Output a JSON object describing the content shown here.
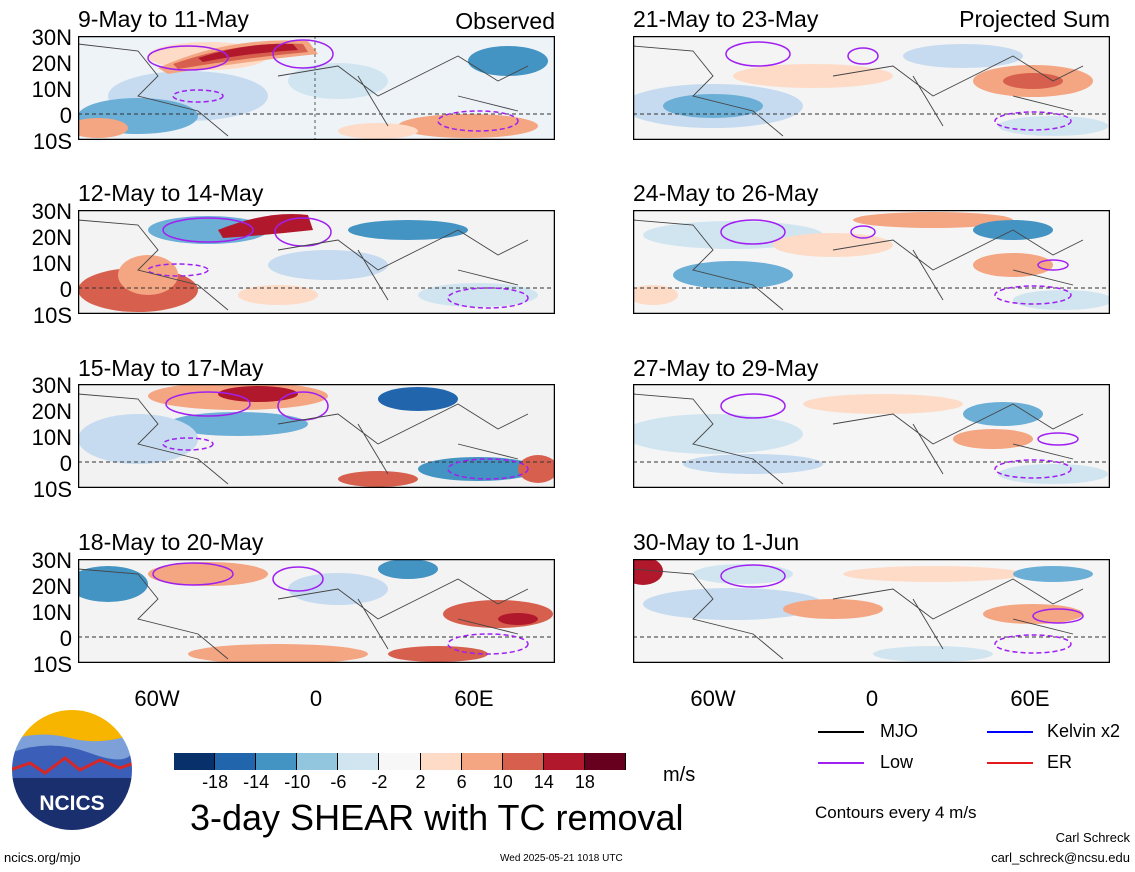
{
  "panels": [
    {
      "id": "p1",
      "title": "9-May to 11-May",
      "label": "Observed"
    },
    {
      "id": "p2",
      "title": "12-May to 14-May",
      "label": ""
    },
    {
      "id": "p3",
      "title": "15-May to 17-May",
      "label": ""
    },
    {
      "id": "p4",
      "title": "18-May to 20-May",
      "label": ""
    },
    {
      "id": "p5",
      "title": "21-May to 23-May",
      "label": "Projected Sum"
    },
    {
      "id": "p6",
      "title": "24-May to 26-May",
      "label": ""
    },
    {
      "id": "p7",
      "title": "27-May to 29-May",
      "label": ""
    },
    {
      "id": "p8",
      "title": "30-May to 1-Jun",
      "label": ""
    }
  ],
  "lat_labels": [
    "30N",
    "20N",
    "10N",
    "0",
    "10S"
  ],
  "lon_labels": [
    "60W",
    "0",
    "60E"
  ],
  "colorbar": {
    "ticks": [
      "-18",
      "-14",
      "-10",
      "-6",
      "-2",
      "2",
      "6",
      "10",
      "14",
      "18"
    ],
    "colors": [
      "#08306b",
      "#2166ac",
      "#4393c3",
      "#92c5de",
      "#d1e5f0",
      "#f7f7f7",
      "#fddbc7",
      "#f4a582",
      "#d6604d",
      "#b2182b",
      "#67001f"
    ],
    "units": "m/s"
  },
  "title": "3-day SHEAR with TC removal",
  "legend": [
    {
      "name": "MJO",
      "color": "#000000"
    },
    {
      "name": "Kelvin x2",
      "color": "#0000ff"
    },
    {
      "name": "Low",
      "color": "#a020f0"
    },
    {
      "name": "ER",
      "color": "#e31a1c"
    }
  ],
  "contour_note": "Contours every 4 m/s",
  "logo_text": "NCICS",
  "footer": {
    "left": "ncics.org/mjo",
    "center": "Wed 2025-05-21 1018 UTC",
    "author": "Carl Schreck",
    "email": "carl_schreck@ncsu.edu"
  }
}
